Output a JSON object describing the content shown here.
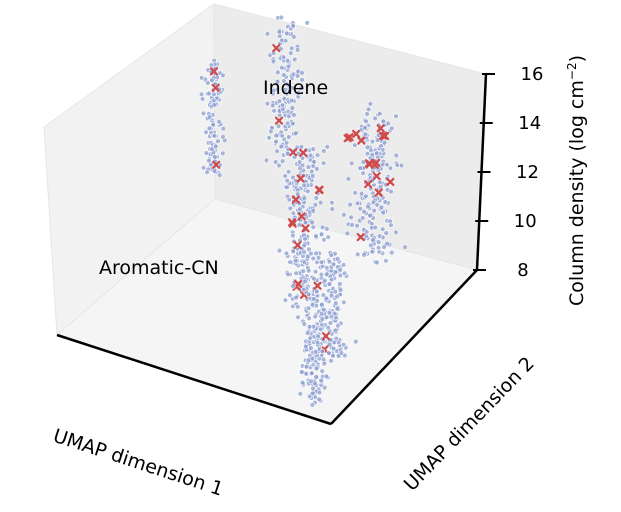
{
  "chart_data": {
    "type": "scatter",
    "projection": "3d",
    "title": "",
    "xlabel": "UMAP dimension 1",
    "ylabel": "UMAP dimension 2",
    "zlabel": "Column density (log  cm",
    "zlabel_sup": "−2",
    "zlabel_close": ")",
    "zlim": [
      8,
      16
    ],
    "zticks": [
      "8",
      "10",
      "12",
      "14",
      "16"
    ],
    "grid": false,
    "legend": "none",
    "annotations": [
      {
        "text": "Indene"
      },
      {
        "text": "Aromatic-CN"
      }
    ],
    "series_style": [
      {
        "marker": "circle",
        "color": "#8e9fd2"
      },
      {
        "marker": "x",
        "color": "#d04a4a"
      }
    ],
    "clusters": [
      {
        "zmin": 10.0,
        "zmax": 14.5,
        "count": 120,
        "x": 0.07,
        "y": 0.87,
        "sx": 0.012,
        "sy": 0.02,
        "highlighted": 3
      },
      {
        "zmin": 11.2,
        "zmax": 16.8,
        "count": 150,
        "x": 0.3,
        "y": 0.92,
        "sx": 0.02,
        "sy": 0.03,
        "highlighted": 2
      },
      {
        "zmin": 9.8,
        "zmax": 15.6,
        "count": 220,
        "x": 0.74,
        "y": 0.72,
        "sx": 0.03,
        "sy": 0.04,
        "highlighted": 16
      },
      {
        "zmin": 9.0,
        "zmax": 15.4,
        "count": 260,
        "x": 0.64,
        "y": 0.45,
        "sx": 0.03,
        "sy": 0.03,
        "highlighted": 14
      },
      {
        "zmin": 8.2,
        "zmax": 12.5,
        "count": 140,
        "x": 0.82,
        "y": 0.32,
        "sx": 0.02,
        "sy": 0.02,
        "highlighted": 1
      },
      {
        "zmin": 7.7,
        "zmax": 12.8,
        "count": 170,
        "x": 0.87,
        "y": 0.12,
        "sx": 0.02,
        "sy": 0.02,
        "highlighted": 2
      }
    ]
  }
}
